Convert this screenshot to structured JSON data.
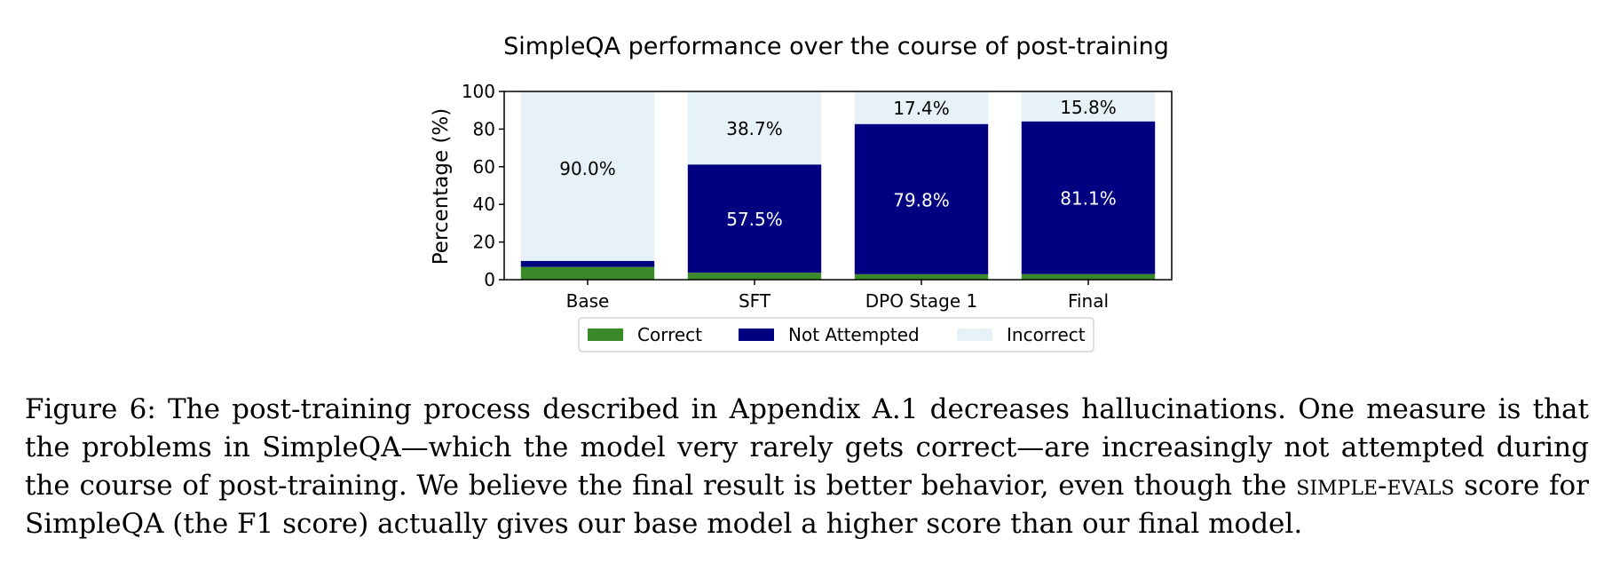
{
  "chart_data": {
    "type": "bar",
    "stacked": true,
    "title": "SimpleQA performance over the course of post-training",
    "xlabel": "",
    "ylabel": "Percentage (%)",
    "ylim": [
      0,
      100
    ],
    "yticks": [
      0,
      20,
      40,
      60,
      80,
      100
    ],
    "categories": [
      "Base",
      "SFT",
      "DPO Stage 1",
      "Final"
    ],
    "series": [
      {
        "name": "Correct",
        "values": [
          6.8,
          3.7,
          2.9,
          3.0
        ],
        "color": "#3a8a2a"
      },
      {
        "name": "Not Attempted",
        "values": [
          3.2,
          57.5,
          79.8,
          81.1
        ],
        "color": "#000080"
      },
      {
        "name": "Incorrect",
        "values": [
          90.0,
          38.7,
          17.4,
          15.8
        ],
        "color": "#e6f1f8"
      }
    ],
    "data_labels": [
      [
        "6.8%",
        "3.2%",
        "90.0%"
      ],
      [
        "3.7%",
        "57.5%",
        "38.7%"
      ],
      [
        "2.9%",
        "79.8%",
        "17.4%"
      ],
      [
        "3.0%",
        "81.1%",
        "15.8%"
      ]
    ],
    "legend_position": "bottom-center",
    "grid": false
  },
  "caption": {
    "part1": "Figure 6: The post-training process described in Appendix A.1 decreases hallucinations. One measure is that the problems in SimpleQA—which the model very rarely gets correct—are increasingly not attempted during the course of post-training. We believe the final result is better behavior, even though the ",
    "smallcaps": "simple-evals",
    "part2": " score for SimpleQA (the F1 score) actually gives our base model a higher score than our final model."
  }
}
